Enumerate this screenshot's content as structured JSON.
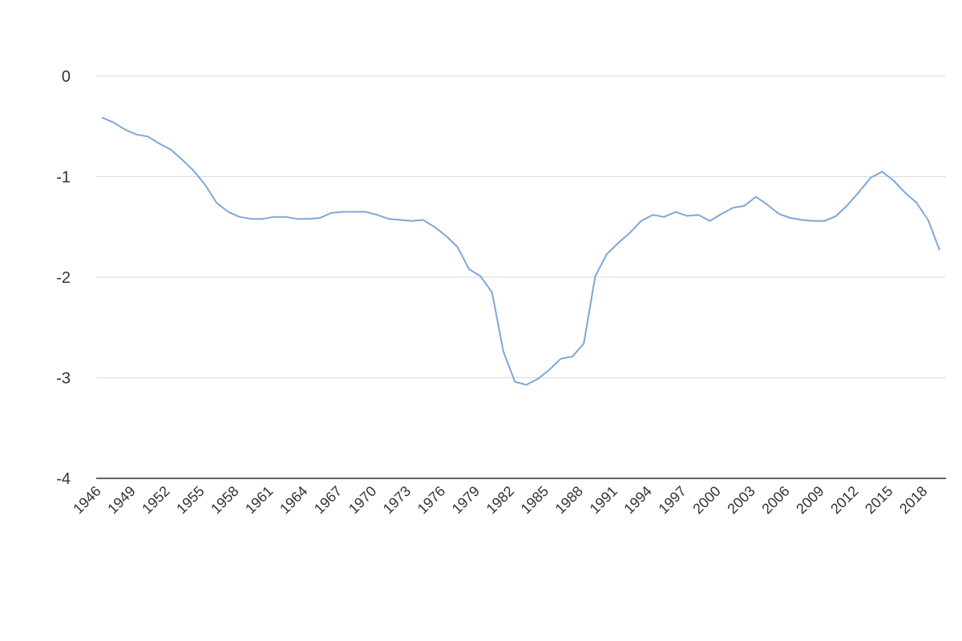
{
  "chart_data": {
    "type": "line",
    "title": "",
    "xlabel": "",
    "ylabel": "",
    "ylim": [
      -4,
      0
    ],
    "yticks": [
      "0",
      "-1",
      "-2",
      "-3",
      "-4"
    ],
    "xlim": [
      1946,
      2019
    ],
    "xticks": [
      "1946",
      "1949",
      "1952",
      "1955",
      "1958",
      "1961",
      "1964",
      "1967",
      "1970",
      "1973",
      "1976",
      "1979",
      "1982",
      "1985",
      "1988",
      "1991",
      "1994",
      "1997",
      "2000",
      "2003",
      "2006",
      "2009",
      "2012",
      "2015",
      "2018"
    ],
    "grid": true,
    "legend": "none",
    "colors": {
      "line": "#7da7d9",
      "grid": "#d9d9d9",
      "axis": "#333333"
    },
    "x": [
      1946,
      1947,
      1948,
      1949,
      1950,
      1951,
      1952,
      1953,
      1954,
      1955,
      1956,
      1957,
      1958,
      1959,
      1960,
      1961,
      1962,
      1963,
      1964,
      1965,
      1966,
      1967,
      1968,
      1969,
      1970,
      1971,
      1972,
      1973,
      1974,
      1975,
      1976,
      1977,
      1978,
      1979,
      1980,
      1981,
      1982,
      1983,
      1984,
      1985,
      1986,
      1987,
      1988,
      1989,
      1990,
      1991,
      1992,
      1993,
      1994,
      1995,
      1996,
      1997,
      1998,
      1999,
      2000,
      2001,
      2002,
      2003,
      2004,
      2005,
      2006,
      2007,
      2008,
      2009,
      2010,
      2011,
      2012,
      2013,
      2014,
      2015,
      2016,
      2017,
      2018,
      2019
    ],
    "series": [
      {
        "values": [
          -0.41,
          -0.46,
          -0.53,
          -0.58,
          -0.6,
          -0.67,
          -0.73,
          -0.83,
          -0.94,
          -1.08,
          -1.26,
          -1.35,
          -1.4,
          -1.42,
          -1.42,
          -1.4,
          -1.4,
          -1.42,
          -1.42,
          -1.41,
          -1.36,
          -1.35,
          -1.35,
          -1.35,
          -1.38,
          -1.42,
          -1.43,
          -1.44,
          -1.43,
          -1.5,
          -1.59,
          -1.7,
          -1.92,
          -1.99,
          -2.15,
          -2.74,
          -3.04,
          -3.07,
          -3.01,
          -2.92,
          -2.81,
          -2.79,
          -2.66,
          -1.99,
          -1.77,
          -1.66,
          -1.56,
          -1.44,
          -1.38,
          -1.4,
          -1.35,
          -1.39,
          -1.38,
          -1.44,
          -1.37,
          -1.31,
          -1.29,
          -1.2,
          -1.28,
          -1.37,
          -1.41,
          -1.43,
          -1.44,
          -1.44,
          -1.39,
          -1.28,
          -1.15,
          -1.01,
          -0.95,
          -1.04,
          -1.16,
          -1.26,
          -1.43,
          -1.73
        ]
      }
    ]
  }
}
